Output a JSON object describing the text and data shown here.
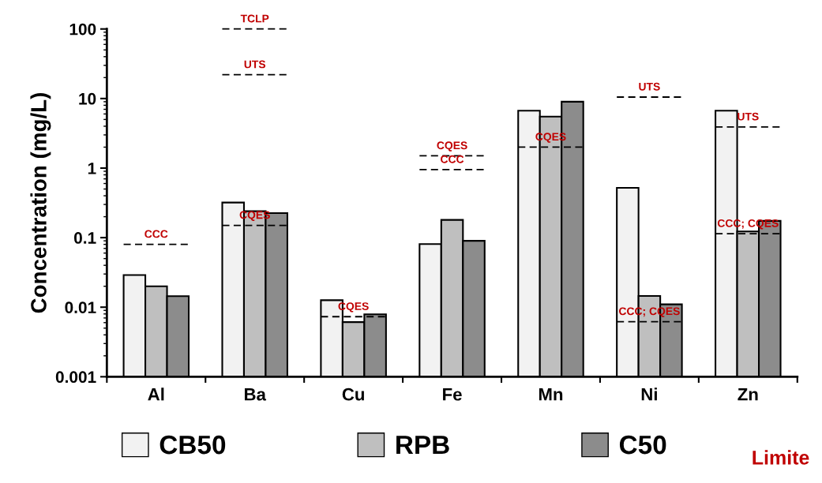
{
  "chart_data": {
    "type": "bar",
    "ylabel": "Concentration (mg/L)",
    "categories": [
      "Al",
      "Ba",
      "Cu",
      "Fe",
      "Mn",
      "Ni",
      "Zn"
    ],
    "series": [
      {
        "name": "CB50",
        "color": "#f2f2f2",
        "values": [
          0.029,
          0.32,
          0.0126,
          0.081,
          6.7,
          0.52,
          6.7
        ]
      },
      {
        "name": "RPB",
        "color": "#bfbfbf",
        "values": [
          0.02,
          0.24,
          0.0061,
          0.18,
          5.5,
          0.0145,
          0.123
        ]
      },
      {
        "name": "C50",
        "color": "#8c8c8c",
        "values": [
          0.0144,
          0.225,
          0.0079,
          0.09,
          9.0,
          0.011,
          0.174
        ]
      }
    ],
    "log": "y",
    "ylim": [
      0.001,
      100
    ],
    "yticks": [
      0.001,
      0.01,
      0.1,
      1,
      10,
      100
    ],
    "legend": "bottom",
    "grid": false,
    "ref_lines": [
      {
        "axis": "y",
        "value": 0.08,
        "line_style": "dashed",
        "color": "#000000"
      },
      {
        "axis": "y",
        "value": 100,
        "line_style": "dashed",
        "color": "#000000"
      },
      {
        "axis": "y",
        "value": 22,
        "line_style": "dashed",
        "color": "#000000"
      },
      {
        "axis": "y",
        "value": 0.15,
        "line_style": "dashed",
        "color": "#000000"
      },
      {
        "axis": "y",
        "value": 0.0073,
        "line_style": "dashed",
        "color": "#000000"
      },
      {
        "axis": "y",
        "value": 1.5,
        "line_style": "dashed",
        "color": "#000000"
      },
      {
        "axis": "y",
        "value": 0.95,
        "line_style": "dashed",
        "color": "#000000"
      },
      {
        "axis": "y",
        "value": 2.0,
        "line_style": "dashed",
        "color": "#000000"
      },
      {
        "axis": "y",
        "value": 10.5,
        "line_style": "dashed",
        "color": "#000000"
      },
      {
        "axis": "y",
        "value": 0.0062,
        "line_style": "dashed",
        "color": "#000000"
      },
      {
        "axis": "y",
        "value": 3.9,
        "line_style": "dashed",
        "color": "#000000"
      },
      {
        "axis": "y",
        "value": 0.114,
        "line_style": "dashed",
        "color": "#000000"
      }
    ],
    "annotations": [
      {
        "text": "CCC",
        "x": "Al",
        "y": 0.08
      },
      {
        "text": "TCLP",
        "x": "Ba",
        "y": 100
      },
      {
        "text": "UTS",
        "x": "Ba",
        "y": 22
      },
      {
        "text": "CQES",
        "x": "Ba",
        "y": 0.15
      },
      {
        "text": "CQES",
        "x": "Cu",
        "y": 0.0073
      },
      {
        "text": "CQES",
        "x": "Fe",
        "y": 1.5
      },
      {
        "text": "CCC",
        "x": "Fe",
        "y": 0.95
      },
      {
        "text": "CQES",
        "x": "Mn",
        "y": 2.0
      },
      {
        "text": "UTS",
        "x": "Ni",
        "y": 10.5
      },
      {
        "text": "CCC; CQES",
        "x": "Ni",
        "y": 0.0062
      },
      {
        "text": "UTS",
        "x": "Zn",
        "y": 3.9
      },
      {
        "text": "CCC; CQES",
        "x": "Zn",
        "y": 0.114
      },
      "Limite"
    ]
  }
}
